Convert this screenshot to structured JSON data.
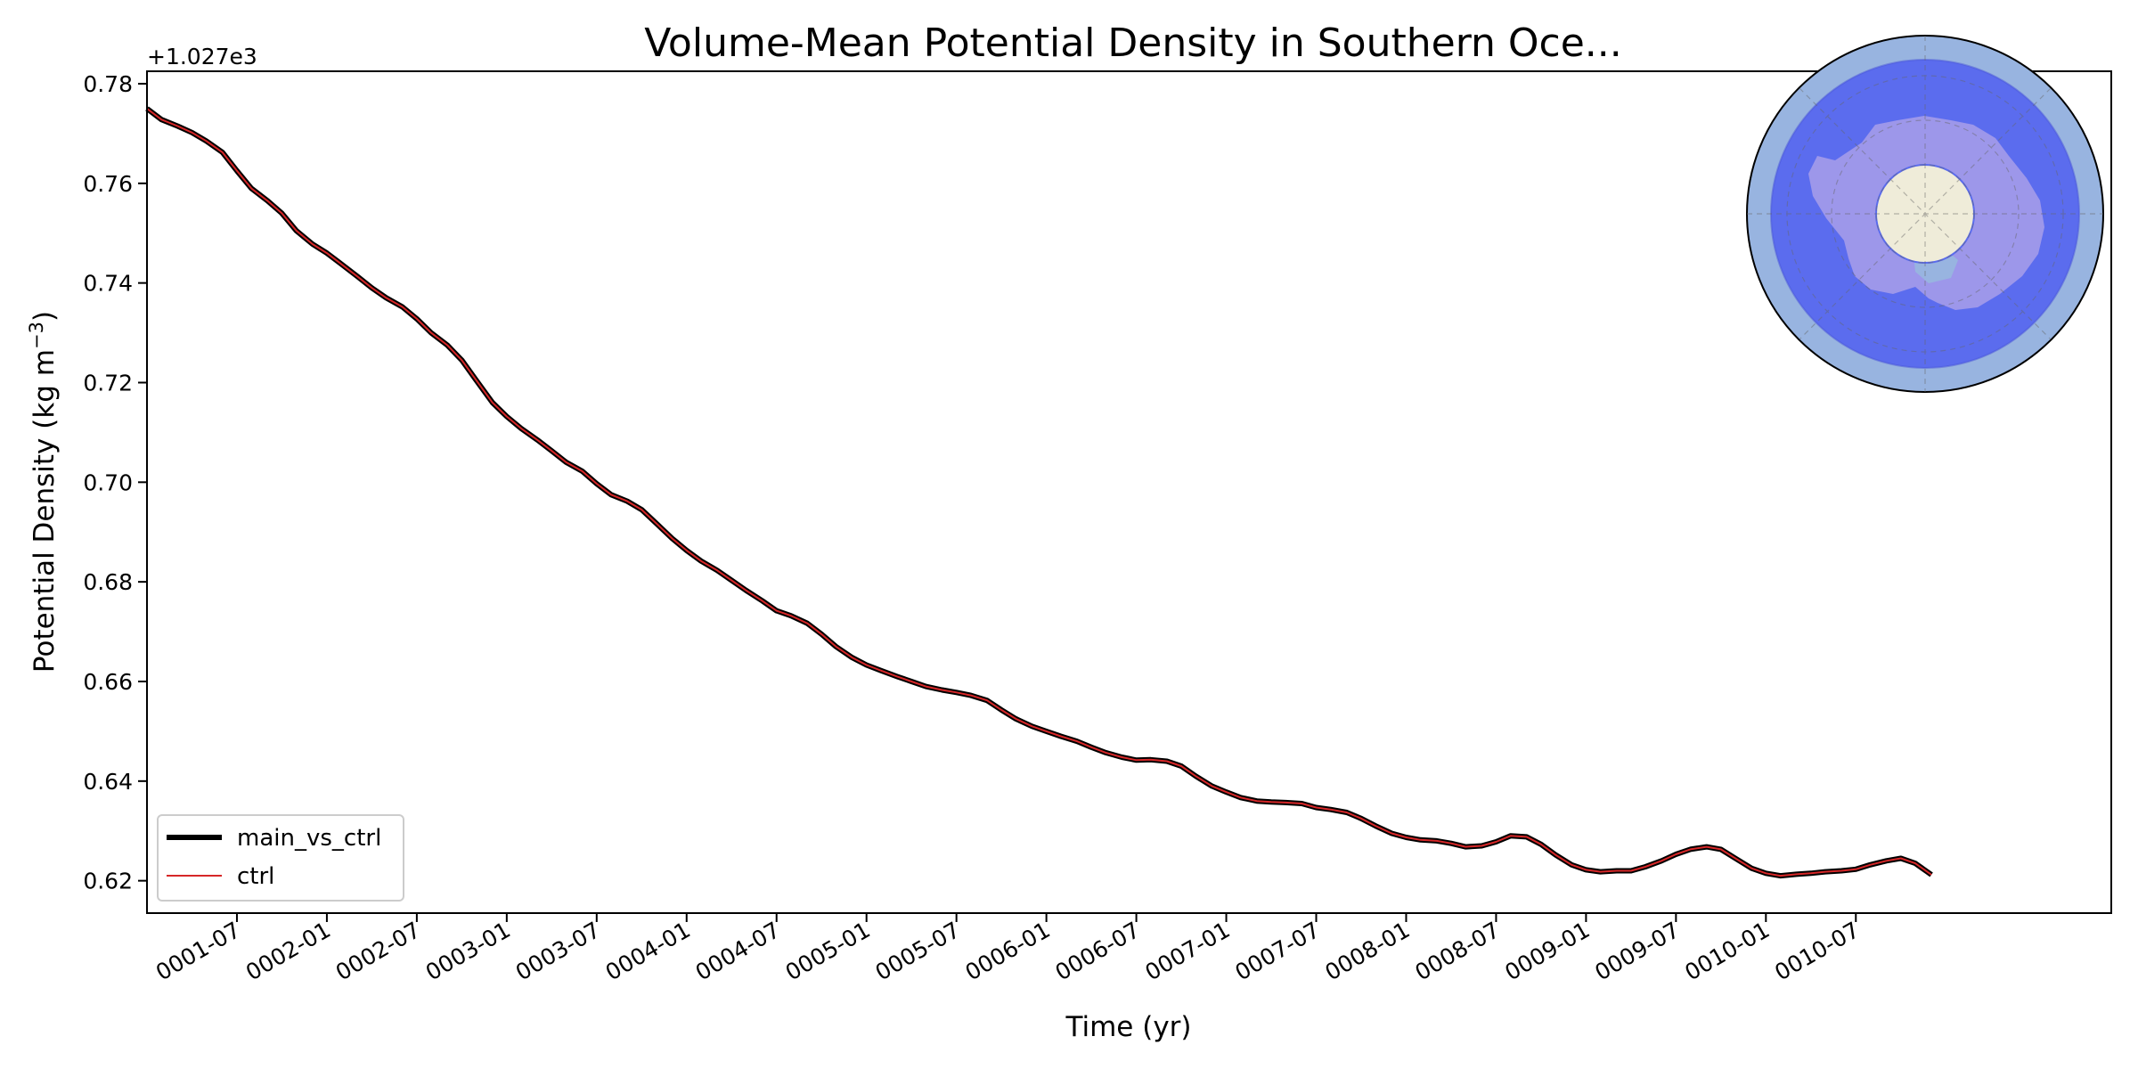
{
  "chart_data": {
    "type": "line",
    "title": "Volume-Mean Potential Density in Southern Oce...",
    "xlabel": "Time (yr)",
    "ylabel": "Potential Density (kg m",
    "ylabel_sup": "−3",
    "ylabel_close": ")",
    "offset_label": "+1.027e3",
    "xlim": [
      0.0,
      10.92
    ],
    "ylim": [
      0.6135,
      0.7825
    ],
    "x_ticks": [
      {
        "x": 0.5,
        "label": "0001-07"
      },
      {
        "x": 1.0,
        "label": "0002-01"
      },
      {
        "x": 1.5,
        "label": "0002-07"
      },
      {
        "x": 2.0,
        "label": "0003-01"
      },
      {
        "x": 2.5,
        "label": "0003-07"
      },
      {
        "x": 3.0,
        "label": "0004-01"
      },
      {
        "x": 3.5,
        "label": "0004-07"
      },
      {
        "x": 4.0,
        "label": "0005-01"
      },
      {
        "x": 4.5,
        "label": "0005-07"
      },
      {
        "x": 5.0,
        "label": "0006-01"
      },
      {
        "x": 5.5,
        "label": "0006-07"
      },
      {
        "x": 6.0,
        "label": "0007-01"
      },
      {
        "x": 6.5,
        "label": "0007-07"
      },
      {
        "x": 7.0,
        "label": "0008-01"
      },
      {
        "x": 7.5,
        "label": "0008-07"
      },
      {
        "x": 8.0,
        "label": "0009-01"
      },
      {
        "x": 8.5,
        "label": "0009-07"
      },
      {
        "x": 9.0,
        "label": "0010-01"
      },
      {
        "x": 9.5,
        "label": "0010-07"
      }
    ],
    "y_ticks": [
      {
        "y": 0.62,
        "label": "0.62"
      },
      {
        "y": 0.64,
        "label": "0.64"
      },
      {
        "y": 0.66,
        "label": "0.66"
      },
      {
        "y": 0.68,
        "label": "0.68"
      },
      {
        "y": 0.7,
        "label": "0.70"
      },
      {
        "y": 0.72,
        "label": "0.72"
      },
      {
        "y": 0.74,
        "label": "0.74"
      },
      {
        "y": 0.76,
        "label": "0.76"
      },
      {
        "y": 0.78,
        "label": "0.78"
      }
    ],
    "x": [
      0.0,
      0.08,
      0.17,
      0.25,
      0.33,
      0.42,
      0.5,
      0.58,
      0.67,
      0.75,
      0.83,
      0.92,
      1.0,
      1.08,
      1.17,
      1.25,
      1.33,
      1.42,
      1.5,
      1.58,
      1.67,
      1.75,
      1.83,
      1.92,
      2.0,
      2.08,
      2.17,
      2.25,
      2.33,
      2.42,
      2.5,
      2.58,
      2.67,
      2.75,
      2.83,
      2.92,
      3.0,
      3.08,
      3.17,
      3.25,
      3.33,
      3.42,
      3.5,
      3.58,
      3.67,
      3.75,
      3.83,
      3.92,
      4.0,
      4.08,
      4.17,
      4.25,
      4.33,
      4.42,
      4.5,
      4.58,
      4.67,
      4.75,
      4.83,
      4.92,
      5.0,
      5.08,
      5.17,
      5.25,
      5.33,
      5.42,
      5.5,
      5.58,
      5.67,
      5.75,
      5.83,
      5.92,
      6.0,
      6.08,
      6.17,
      6.25,
      6.33,
      6.42,
      6.5,
      6.58,
      6.67,
      6.75,
      6.83,
      6.92,
      7.0,
      7.08,
      7.17,
      7.25,
      7.33,
      7.42,
      7.5,
      7.58,
      7.67,
      7.75,
      7.83,
      7.92,
      8.0,
      8.08,
      8.17,
      8.25,
      8.33,
      8.42,
      8.5,
      8.58,
      8.67,
      8.75,
      8.83,
      8.92,
      9.0,
      9.08,
      9.17,
      9.25,
      9.33,
      9.42,
      9.5,
      9.58,
      9.67,
      9.75,
      9.83,
      9.92
    ],
    "series": [
      {
        "name": "main_vs_ctrl",
        "color": "#000000",
        "width": 6,
        "values": [
          0.775,
          0.7728,
          0.7715,
          0.7702,
          0.7685,
          0.7662,
          0.7625,
          0.759,
          0.7565,
          0.754,
          0.7505,
          0.7478,
          0.746,
          0.7438,
          0.7413,
          0.739,
          0.737,
          0.7352,
          0.7328,
          0.73,
          0.7275,
          0.7245,
          0.7205,
          0.716,
          0.7132,
          0.7108,
          0.7085,
          0.7063,
          0.704,
          0.7022,
          0.6997,
          0.6975,
          0.6962,
          0.6945,
          0.6918,
          0.6887,
          0.6863,
          0.6842,
          0.6823,
          0.6803,
          0.6783,
          0.6762,
          0.6742,
          0.6732,
          0.6717,
          0.6695,
          0.667,
          0.6648,
          0.6633,
          0.6622,
          0.661,
          0.66,
          0.659,
          0.6583,
          0.6578,
          0.6572,
          0.6562,
          0.6543,
          0.6525,
          0.651,
          0.65,
          0.649,
          0.648,
          0.6468,
          0.6457,
          0.6448,
          0.6442,
          0.6443,
          0.644,
          0.643,
          0.641,
          0.639,
          0.6378,
          0.6367,
          0.636,
          0.6358,
          0.6357,
          0.6355,
          0.6347,
          0.6343,
          0.6337,
          0.6325,
          0.631,
          0.6295,
          0.6287,
          0.6282,
          0.628,
          0.6275,
          0.6268,
          0.627,
          0.6278,
          0.629,
          0.6288,
          0.6273,
          0.6252,
          0.6232,
          0.6222,
          0.6218,
          0.622,
          0.622,
          0.6228,
          0.624,
          0.6253,
          0.6263,
          0.6268,
          0.6263,
          0.6245,
          0.6225,
          0.6215,
          0.621,
          0.6213,
          0.6215,
          0.6218,
          0.622,
          0.6223,
          0.6232,
          0.624,
          0.6245,
          0.6235,
          0.6212
        ]
      },
      {
        "name": "ctrl",
        "color": "#d62728",
        "width": 2,
        "values": [
          0.775,
          0.7728,
          0.7715,
          0.7702,
          0.7685,
          0.7662,
          0.7625,
          0.759,
          0.7565,
          0.754,
          0.7505,
          0.7478,
          0.746,
          0.7438,
          0.7413,
          0.739,
          0.737,
          0.7352,
          0.7328,
          0.73,
          0.7275,
          0.7245,
          0.7205,
          0.716,
          0.7132,
          0.7108,
          0.7085,
          0.7063,
          0.704,
          0.7022,
          0.6997,
          0.6975,
          0.6962,
          0.6945,
          0.6918,
          0.6887,
          0.6863,
          0.6842,
          0.6823,
          0.6803,
          0.6783,
          0.6762,
          0.6742,
          0.6732,
          0.6717,
          0.6695,
          0.667,
          0.6648,
          0.6633,
          0.6622,
          0.661,
          0.66,
          0.659,
          0.6583,
          0.6578,
          0.6572,
          0.6562,
          0.6543,
          0.6525,
          0.651,
          0.65,
          0.649,
          0.648,
          0.6468,
          0.6457,
          0.6448,
          0.6442,
          0.6443,
          0.644,
          0.643,
          0.641,
          0.639,
          0.6378,
          0.6367,
          0.636,
          0.6358,
          0.6357,
          0.6355,
          0.6347,
          0.6343,
          0.6337,
          0.6325,
          0.631,
          0.6295,
          0.6287,
          0.6282,
          0.628,
          0.6275,
          0.6268,
          0.627,
          0.6278,
          0.629,
          0.6288,
          0.6273,
          0.6252,
          0.6232,
          0.6222,
          0.6218,
          0.622,
          0.622,
          0.6228,
          0.624,
          0.6253,
          0.6263,
          0.6268,
          0.6263,
          0.6245,
          0.6225,
          0.6215,
          0.621,
          0.6213,
          0.6215,
          0.6218,
          0.622,
          0.6223,
          0.6232,
          0.624,
          0.6245,
          0.6235,
          0.6212
        ]
      }
    ],
    "legend": [
      {
        "label": "main_vs_ctrl",
        "color": "#000000"
      },
      {
        "label": "ctrl",
        "color": "#d62728"
      }
    ],
    "legend_position": "lower-left",
    "inset": {
      "type": "south-polar-map",
      "region": "Southern Ocean",
      "ocean_color": "#98b4e0",
      "region_color": "#5b6cee",
      "land_color": "#9d97ea",
      "pole_color": "#efecd9"
    }
  }
}
